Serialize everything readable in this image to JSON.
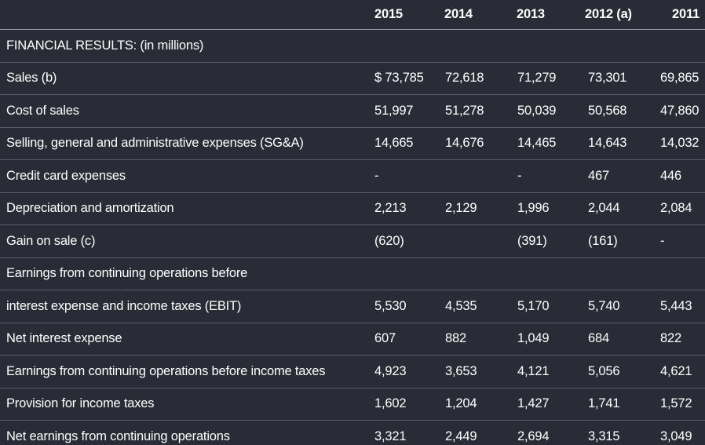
{
  "table": {
    "headers": [
      "",
      "2015",
      "2014",
      "2013",
      "2012 (a)",
      "2011"
    ],
    "rows": [
      {
        "label": "FINANCIAL RESULTS: (in millions)",
        "values": [
          "",
          "",
          "",
          "",
          ""
        ]
      },
      {
        "label": "Sales (b)",
        "values": [
          "$ 73,785",
          "72,618",
          "71,279",
          "73,301",
          "69,865"
        ]
      },
      {
        "label": "Cost of sales",
        "values": [
          "51,997",
          "51,278",
          "50,039",
          "50,568",
          "47,860"
        ]
      },
      {
        "label": "Selling, general and administrative expenses (SG&A)",
        "values": [
          "14,665",
          "14,676",
          "14,465",
          "14,643",
          "14,032"
        ]
      },
      {
        "label": "Credit card expenses",
        "values": [
          "-",
          "",
          "-",
          "467",
          "446"
        ]
      },
      {
        "label": "Depreciation and amortization",
        "values": [
          "2,213",
          "2,129",
          "1,996",
          "2,044",
          "2,084"
        ]
      },
      {
        "label": "Gain on sale (c)",
        "values": [
          "(620)",
          "",
          "(391)",
          "(161)",
          "-"
        ]
      },
      {
        "label": "Earnings from continuing operations before",
        "values": [
          "",
          "",
          "",
          "",
          ""
        ]
      },
      {
        "label": "interest expense and income taxes (EBIT)",
        "values": [
          "5,530",
          "4,535",
          "5,170",
          "5,740",
          "5,443"
        ]
      },
      {
        "label": "Net interest expense",
        "values": [
          "607",
          "882",
          "1,049",
          "684",
          "822"
        ]
      },
      {
        "label": "Earnings from continuing operations before income taxes",
        "values": [
          "4,923",
          "3,653",
          "4,121",
          "5,056",
          "4,621"
        ]
      },
      {
        "label": "Provision for income taxes",
        "values": [
          "1,602",
          "1,204",
          "1,427",
          "1,741",
          "1,572"
        ]
      },
      {
        "label": "Net earnings from continuing operations",
        "values": [
          "3,321",
          "2,449",
          "2,694",
          "3,315",
          "3,049"
        ]
      }
    ]
  }
}
